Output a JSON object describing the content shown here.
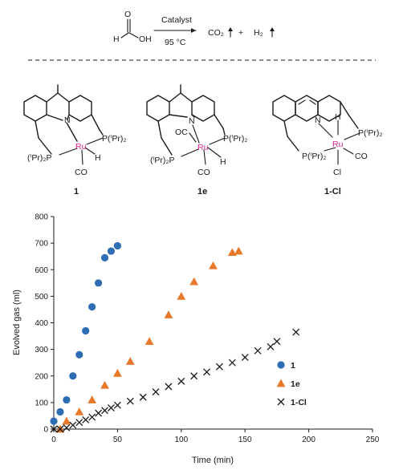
{
  "scheme": {
    "reactant_labels": {
      "H": "H",
      "O": "O",
      "OH": "OH"
    },
    "catalyst_label": "Catalyst",
    "condition_label": "95 °C",
    "product_1": "CO₂",
    "plus": "+",
    "product_2": "H₂"
  },
  "complexes": [
    {
      "id": "1",
      "name": "1",
      "labels": {
        "N": "N",
        "Ru": "Ru",
        "H": "H",
        "CO": "CO",
        "P_right": "P(ⁱPr)₂",
        "P_left": "(ⁱPr)₂P"
      }
    },
    {
      "id": "1e",
      "name": "1e",
      "labels": {
        "N": "N",
        "Ru": "Ru",
        "H": "H",
        "CO": "CO",
        "OC": "OC",
        "P_right": "P(ⁱPr)₂",
        "P_left": "(ⁱPr)₂P"
      }
    },
    {
      "id": "1-Cl",
      "name": "1-Cl",
      "labels": {
        "N": "N",
        "Ru": "Ru",
        "H": "H",
        "CO": "CO",
        "Cl": "Cl",
        "P_right": "P(ⁱPr)₂",
        "P_left": "P(ⁱPr)₂"
      }
    }
  ],
  "chart_data": {
    "type": "scatter",
    "xlabel": "Time (min)",
    "ylabel": "Evolved gas (ml)",
    "xlim": [
      0,
      250
    ],
    "ylim": [
      0,
      800
    ],
    "xticks": [
      0,
      50,
      100,
      150,
      200,
      250
    ],
    "yticks": [
      0,
      100,
      200,
      300,
      400,
      500,
      600,
      700,
      800
    ],
    "grid": false,
    "legend_position": "lower-right",
    "series": [
      {
        "name": "1",
        "marker": "circle",
        "color": "#2e6db4",
        "x": [
          0,
          5,
          10,
          15,
          20,
          25,
          30,
          35,
          40,
          45,
          50
        ],
        "y": [
          30,
          65,
          110,
          200,
          280,
          370,
          460,
          550,
          645,
          670,
          690
        ]
      },
      {
        "name": "1e",
        "marker": "triangle",
        "color": "#e8782a",
        "x": [
          5,
          10,
          20,
          30,
          40,
          50,
          60,
          75,
          90,
          100,
          110,
          125,
          140,
          145
        ],
        "y": [
          0,
          30,
          65,
          110,
          165,
          210,
          255,
          330,
          430,
          500,
          555,
          615,
          665,
          670
        ]
      },
      {
        "name": "1-Cl",
        "marker": "x",
        "color": "#1a1a1a",
        "x": [
          0,
          5,
          10,
          15,
          20,
          25,
          30,
          35,
          40,
          45,
          50,
          60,
          70,
          80,
          90,
          100,
          110,
          120,
          130,
          140,
          150,
          160,
          170,
          175,
          190
        ],
        "y": [
          0,
          0,
          5,
          15,
          25,
          35,
          45,
          60,
          70,
          80,
          90,
          105,
          120,
          140,
          160,
          180,
          200,
          215,
          235,
          250,
          270,
          295,
          310,
          330,
          365
        ]
      }
    ]
  }
}
